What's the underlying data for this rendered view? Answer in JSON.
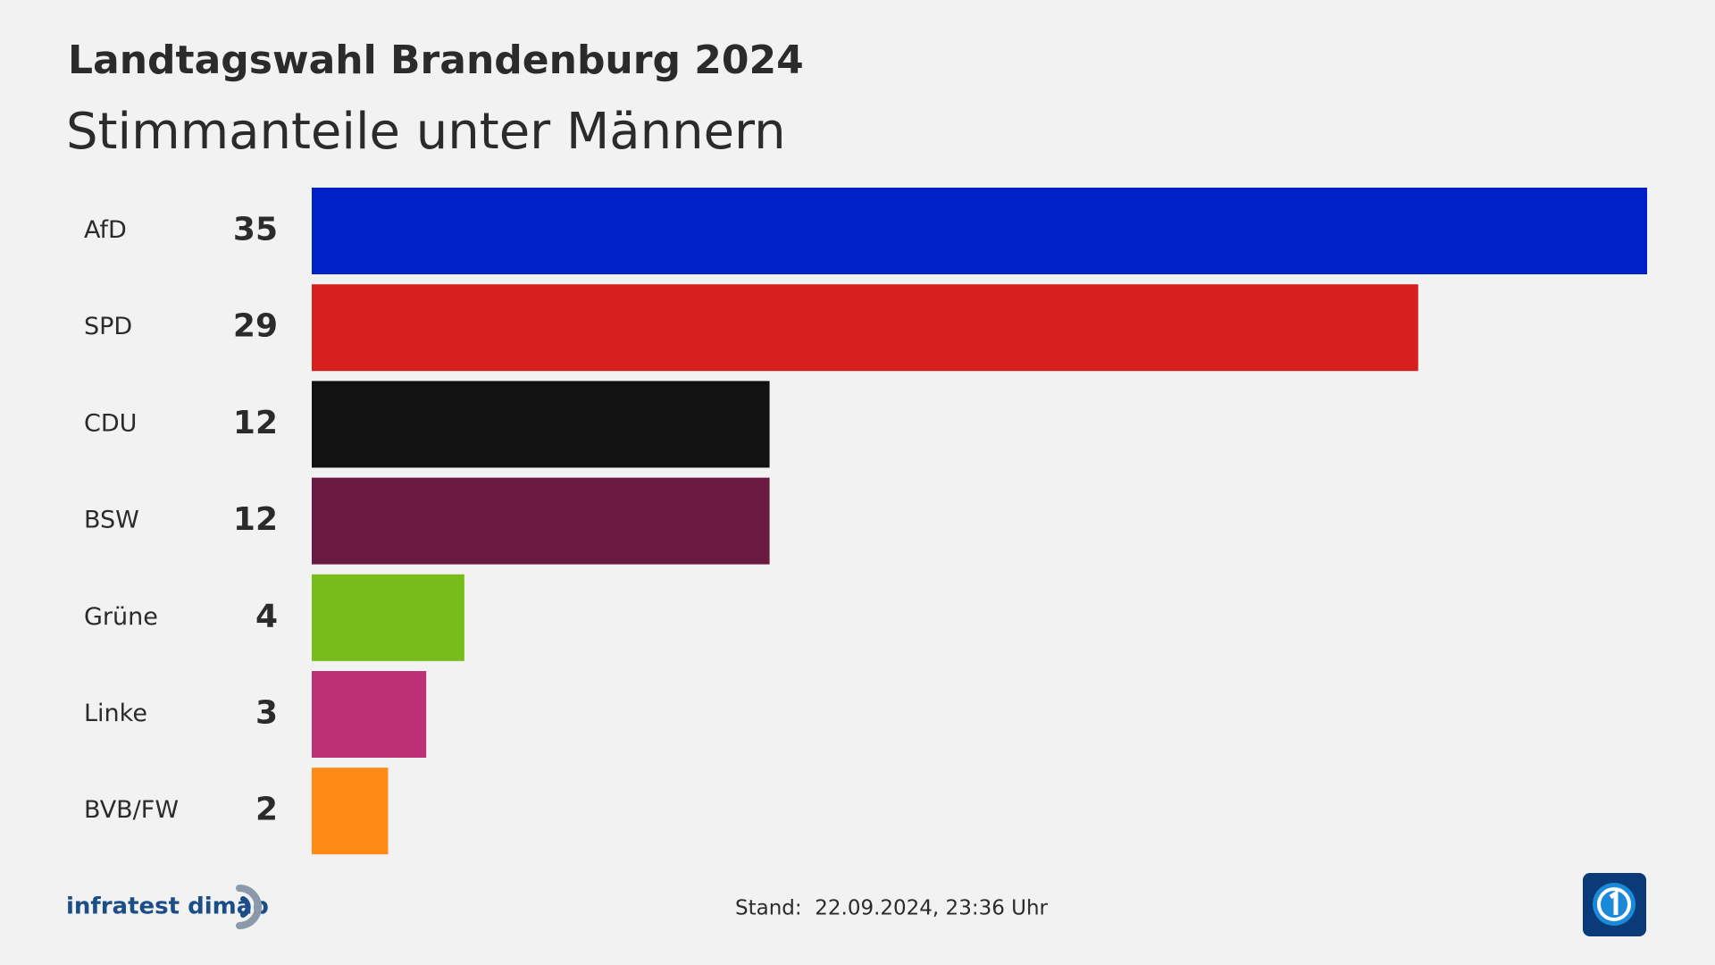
{
  "chart_data": {
    "type": "bar",
    "orientation": "horizontal",
    "title": "Landtagswahl Brandenburg 2024",
    "subtitle": "Stimmanteile unter Männern",
    "categories": [
      "AfD",
      "SPD",
      "CDU",
      "BSW",
      "Grüne",
      "Linke",
      "BVB/FW"
    ],
    "values": [
      35,
      29,
      12,
      12,
      4,
      3,
      2
    ],
    "colors": [
      "#0021c8",
      "#d81f1f",
      "#121212",
      "#6a1940",
      "#78bc1b",
      "#bd3075",
      "#ff8a15"
    ],
    "source": "infratest dimap",
    "footer": "Stand:  22.09.2024, 23:36 Uhr"
  }
}
